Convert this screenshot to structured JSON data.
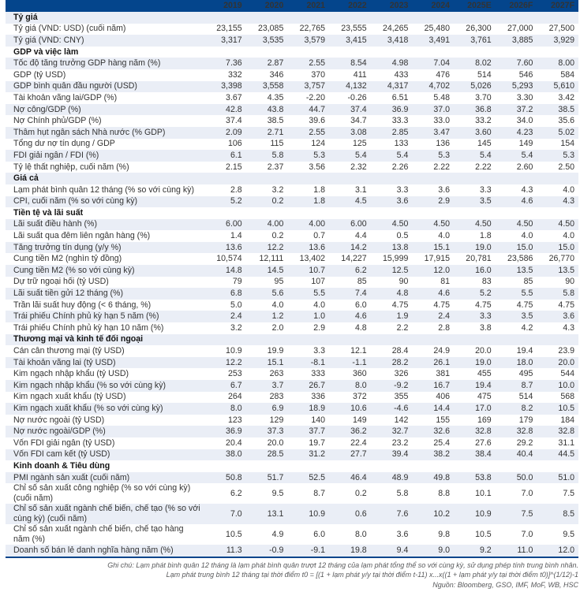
{
  "colors": {
    "header_bg": "#04458c",
    "stripe_bg": "#eaeef6",
    "text": "#333333",
    "note_text": "#58595b"
  },
  "table": {
    "year_headers": [
      "2019",
      "2020",
      "2021",
      "2022",
      "2023",
      "2024",
      "2025E",
      "2026F",
      "2027F"
    ],
    "rows": [
      {
        "type": "section",
        "label": "Tỷ giá"
      },
      {
        "type": "data",
        "label": "Tỷ giá (VND: USD) (cuối năm)",
        "values": [
          "23,155",
          "23,085",
          "22,765",
          "23,555",
          "24,265",
          "25,480",
          "26,300",
          "27,000",
          "27,500"
        ]
      },
      {
        "type": "data",
        "label": "Tỷ giá (VND: CNY)",
        "values": [
          "3,317",
          "3,535",
          "3,579",
          "3,415",
          "3,418",
          "3,491",
          "3,761",
          "3,885",
          "3,929"
        ]
      },
      {
        "type": "section",
        "label": "GDP và việc làm"
      },
      {
        "type": "data",
        "label": "Tốc độ tăng trưởng GDP hàng năm (%)",
        "values": [
          "7.36",
          "2.87",
          "2.55",
          "8.54",
          "4.98",
          "7.04",
          "8.02",
          "7.60",
          "8.00"
        ]
      },
      {
        "type": "data",
        "label": "GDP (tỷ USD)",
        "values": [
          "332",
          "346",
          "370",
          "411",
          "433",
          "476",
          "514",
          "546",
          "584"
        ]
      },
      {
        "type": "data",
        "label": "GDP bình quân đầu người (USD)",
        "values": [
          "3,398",
          "3,558",
          "3,757",
          "4,132",
          "4,317",
          "4,702",
          "5,026",
          "5,293",
          "5,610"
        ]
      },
      {
        "type": "data",
        "label": "Tài khoản vãng lai/GDP (%)",
        "values": [
          "3.67",
          "4.35",
          "-2.20",
          "-0.26",
          "6.51",
          "5.48",
          "3.70",
          "3.30",
          "3.42"
        ]
      },
      {
        "type": "data",
        "label": "Nợ công/GDP (%)",
        "values": [
          "42.8",
          "43.8",
          "44.7",
          "37.4",
          "36.9",
          "37.0",
          "36.8",
          "37.2",
          "38.5"
        ]
      },
      {
        "type": "data",
        "label": "Nợ Chính phủ/GDP (%)",
        "values": [
          "37.4",
          "38.5",
          "39.6",
          "34.7",
          "33.3",
          "33.0",
          "33.2",
          "34.0",
          "35.6"
        ]
      },
      {
        "type": "data",
        "label": "Thâm hụt ngân sách Nhà nước (% GDP)",
        "values": [
          "2.09",
          "2.71",
          "2.55",
          "3.08",
          "2.85",
          "3.47",
          "3.60",
          "4.23",
          "5.02"
        ]
      },
      {
        "type": "data",
        "label": "Tổng dư nợ tín dụng / GDP",
        "values": [
          "106",
          "115",
          "124",
          "125",
          "133",
          "136",
          "145",
          "149",
          "154"
        ]
      },
      {
        "type": "data",
        "label": "FDI giải ngân / FDI (%)",
        "values": [
          "6.1",
          "5.8",
          "5.3",
          "5.4",
          "5.4",
          "5.3",
          "5.4",
          "5.4",
          "5.3"
        ]
      },
      {
        "type": "data",
        "label": "Tỷ lệ thất nghiệp, cuối năm (%)",
        "values": [
          "2.15",
          "2.37",
          "3.56",
          "2.32",
          "2.26",
          "2.22",
          "2.22",
          "2.60",
          "2.50"
        ]
      },
      {
        "type": "section",
        "label": "Giá cả"
      },
      {
        "type": "data",
        "label": "Lạm phát bình quân 12 tháng (% so với cùng kỳ)",
        "values": [
          "2.8",
          "3.2",
          "1.8",
          "3.1",
          "3.3",
          "3.6",
          "3.3",
          "4.3",
          "4.0"
        ]
      },
      {
        "type": "data",
        "label": "CPI, cuối năm (% so với cùng kỳ)",
        "values": [
          "5.2",
          "0.2",
          "1.8",
          "4.5",
          "3.6",
          "2.9",
          "3.5",
          "4.6",
          "4.3"
        ]
      },
      {
        "type": "section",
        "label": "Tiền tệ và lãi suất"
      },
      {
        "type": "data",
        "label": "Lãi suất điều hành (%)",
        "values": [
          "6.00",
          "4.00",
          "4.00",
          "6.00",
          "4.50",
          "4.50",
          "4.50",
          "4.50",
          "4.50"
        ]
      },
      {
        "type": "data",
        "label": "Lãi suất qua đêm liên ngân hàng (%)",
        "values": [
          "1.4",
          "0.2",
          "0.7",
          "4.4",
          "0.5",
          "4.0",
          "1.8",
          "4.0",
          "4.0"
        ]
      },
      {
        "type": "data",
        "label": "Tăng trưởng tín dụng (y/y %)",
        "values": [
          "13.6",
          "12.2",
          "13.6",
          "14.2",
          "13.8",
          "15.1",
          "19.0",
          "15.0",
          "15.0"
        ]
      },
      {
        "type": "data",
        "label": "Cung tiền M2 (nghìn tỷ đồng)",
        "values": [
          "10,574",
          "12,111",
          "13,402",
          "14,227",
          "15,999",
          "17,915",
          "20,781",
          "23,586",
          "26,770"
        ]
      },
      {
        "type": "data",
        "label": "Cung tiền M2 (% so với cùng kỳ)",
        "values": [
          "14.8",
          "14.5",
          "10.7",
          "6.2",
          "12.5",
          "12.0",
          "16.0",
          "13.5",
          "13.5"
        ]
      },
      {
        "type": "data",
        "label": "Dự trữ ngoại hối (tỷ USD)",
        "values": [
          "79",
          "95",
          "107",
          "85",
          "90",
          "81",
          "83",
          "85",
          "90"
        ]
      },
      {
        "type": "data",
        "label": "Lãi suất tiền gửi 12 tháng (%)",
        "values": [
          "6.8",
          "5.6",
          "5.5",
          "7.4",
          "4.8",
          "4.6",
          "5.2",
          "5.5",
          "5.8"
        ]
      },
      {
        "type": "data",
        "label": "Trần lãi suất huy động (< 6 tháng, %)",
        "values": [
          "5.0",
          "4.0",
          "4.0",
          "6.0",
          "4.75",
          "4.75",
          "4.75",
          "4.75",
          "4.75"
        ]
      },
      {
        "type": "data",
        "label": "Trái phiếu Chính phủ kỳ hạn 5 năm (%)",
        "values": [
          "2.4",
          "1.2",
          "1.0",
          "4.6",
          "1.9",
          "2.4",
          "3.3",
          "3.5",
          "3.6"
        ]
      },
      {
        "type": "data",
        "label": "Trái phiếu Chính phủ kỳ hạn 10 năm (%)",
        "values": [
          "3.2",
          "2.0",
          "2.9",
          "4.8",
          "2.2",
          "2.8",
          "3.8",
          "4.2",
          "4.3"
        ]
      },
      {
        "type": "section",
        "label": "Thương mại và kinh tế đối ngoại"
      },
      {
        "type": "data",
        "label": "Cán cân thương mại (tỷ USD)",
        "values": [
          "10.9",
          "19.9",
          "3.3",
          "12.1",
          "28.4",
          "24.9",
          "20.0",
          "19.4",
          "23.9"
        ]
      },
      {
        "type": "data",
        "label": "Tài khoản vãng lai (tỷ USD)",
        "values": [
          "12.2",
          "15.1",
          "-8.1",
          "-1.1",
          "28.2",
          "26.1",
          "19.0",
          "18.0",
          "20.0"
        ]
      },
      {
        "type": "data",
        "label": "Kim ngạch nhập khẩu (tỷ USD)",
        "values": [
          "253",
          "263",
          "333",
          "360",
          "326",
          "381",
          "455",
          "495",
          "544"
        ]
      },
      {
        "type": "data",
        "label": "Kim ngạch nhập khẩu (% so với cùng kỳ)",
        "values": [
          "6.7",
          "3.7",
          "26.7",
          "8.0",
          "-9.2",
          "16.7",
          "19.4",
          "8.7",
          "10.0"
        ]
      },
      {
        "type": "data",
        "label": "Kim ngạch xuất khẩu (tỷ USD)",
        "values": [
          "264",
          "283",
          "336",
          "372",
          "355",
          "406",
          "475",
          "514",
          "568"
        ]
      },
      {
        "type": "data",
        "label": "Kim ngạch xuất khẩu (% so với cùng kỳ)",
        "values": [
          "8.0",
          "6.9",
          "18.9",
          "10.6",
          "-4.6",
          "14.4",
          "17.0",
          "8.2",
          "10.5"
        ]
      },
      {
        "type": "data",
        "label": "Nợ nước ngoài (tỷ USD)",
        "values": [
          "123",
          "129",
          "140",
          "149",
          "142",
          "155",
          "169",
          "179",
          "184"
        ]
      },
      {
        "type": "data",
        "label": "Nợ nước ngoài/GDP (%)",
        "values": [
          "36.9",
          "37.3",
          "37.7",
          "36.2",
          "32.7",
          "32.6",
          "32.8",
          "32.8",
          "32.8"
        ]
      },
      {
        "type": "data",
        "label": "Vốn FDI giải ngân (tỷ USD)",
        "values": [
          "20.4",
          "20.0",
          "19.7",
          "22.4",
          "23.2",
          "25.4",
          "27.6",
          "29.2",
          "31.1"
        ]
      },
      {
        "type": "data",
        "label": "Vốn FDI cam kết (tỷ USD)",
        "values": [
          "38.0",
          "28.5",
          "31.2",
          "27.7",
          "39.4",
          "38.2",
          "38.4",
          "40.4",
          "44.5"
        ]
      },
      {
        "type": "section",
        "label": "Kinh doanh & Tiêu dùng"
      },
      {
        "type": "data",
        "label": "PMI ngành sản xuất (cuối năm)",
        "values": [
          "50.8",
          "51.7",
          "52.5",
          "46.4",
          "48.9",
          "49.8",
          "53.8",
          "50.0",
          "51.0"
        ]
      },
      {
        "type": "data",
        "label": "Chỉ số sản xuất công nghiệp (% so với cùng kỳ) (cuối năm)",
        "values": [
          "6.2",
          "9.5",
          "8.7",
          "0.2",
          "5.8",
          "8.8",
          "10.1",
          "7.0",
          "7.5"
        ]
      },
      {
        "type": "data",
        "label": "Chỉ số sản xuất ngành chế biến, chế tạo (% so với cùng kỳ) (cuối năm)",
        "values": [
          "7.0",
          "13.1",
          "10.9",
          "0.6",
          "7.6",
          "10.2",
          "10.9",
          "7.5",
          "8.5"
        ]
      },
      {
        "type": "data",
        "label": "Chỉ số sản xuất ngành chế biến, chế tạo hàng năm (%)",
        "values": [
          "10.5",
          "4.9",
          "6.0",
          "8.0",
          "3.6",
          "9.8",
          "10.5",
          "7.0",
          "9.5"
        ]
      },
      {
        "type": "data",
        "label": "Doanh số bán lẻ danh nghĩa hàng năm (%)",
        "values": [
          "11.3",
          "-0.9",
          "-9.1",
          "19.8",
          "9.4",
          "9.0",
          "9.2",
          "11.0",
          "12.0"
        ]
      }
    ]
  },
  "footnotes": {
    "line1": "Ghi chú: Lạm phát bình quân 12 tháng là lạm phát bình quân trượt 12 tháng của lạm phát tổng thể so với cùng kỳ, sử dụng phép tính trung bình nhân.",
    "line2": "Lạm phát trung bình 12 tháng tại thời điểm t0 = [(1 + lạm phát y/y tại thời điểm t-11) x...x((1 + lạm phát y/y tại thời điểm t0)]^(1/12)-1",
    "source": "Nguồn: Bloomberg, GSO, IMF, MoF, WB, HSC"
  }
}
